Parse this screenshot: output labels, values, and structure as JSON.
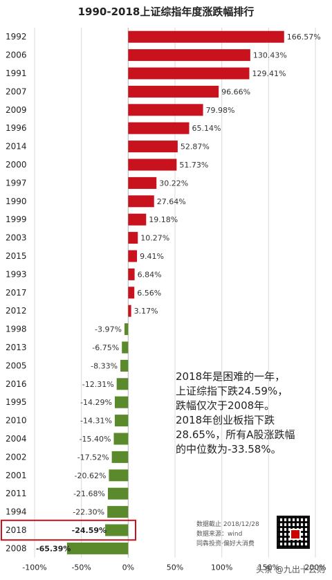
{
  "chart_data": {
    "type": "bar",
    "orientation": "horizontal",
    "title": "1990-2018上证综指年度涨跌幅排行",
    "categories": [
      "1992",
      "2006",
      "1991",
      "2007",
      "2009",
      "1996",
      "2014",
      "2000",
      "1997",
      "1990",
      "1999",
      "2003",
      "2015",
      "1993",
      "2017",
      "2012",
      "1998",
      "2013",
      "2005",
      "2016",
      "1995",
      "2010",
      "2004",
      "2002",
      "2001",
      "2011",
      "1994",
      "2018",
      "2008"
    ],
    "values": [
      166.57,
      130.43,
      129.41,
      96.66,
      79.98,
      65.14,
      52.87,
      51.73,
      30.22,
      27.64,
      19.18,
      10.27,
      9.41,
      6.84,
      6.56,
      3.17,
      -3.97,
      -6.75,
      -8.33,
      -12.31,
      -14.29,
      -14.31,
      -15.4,
      -17.52,
      -20.62,
      -21.68,
      -22.3,
      -24.59,
      -65.39
    ],
    "value_labels": [
      "166.57%",
      "130.43%",
      "129.41%",
      "96.66%",
      "79.98%",
      "65.14%",
      "52.87%",
      "51.73%",
      "30.22%",
      "27.64%",
      "19.18%",
      "10.27%",
      "9.41%",
      "6.84%",
      "6.56%",
      "3.17%",
      "-3.97%",
      "-6.75%",
      "-8.33%",
      "-12.31%",
      "-14.29%",
      "-14.31%",
      "-15.40%",
      "-17.52%",
      "-20.62%",
      "-21.68%",
      "-22.30%",
      "-24.59%",
      "-65.39%"
    ],
    "xlim": [
      -100,
      200
    ],
    "xticks": [
      -100,
      -50,
      0,
      50,
      100,
      150,
      200
    ],
    "xtick_labels": [
      "-100%",
      "-50%",
      "0%",
      "50%",
      "100%",
      "150%",
      "200%"
    ],
    "grid": true,
    "highlight_category": "2018",
    "colors": {
      "positive": "#c8121e",
      "negative": "#5b8a2c",
      "highlight_box": "#c8121e"
    }
  },
  "annotation": {
    "lines": [
      "2018年是困难的一年，",
      "上证综指下跌24.59%，",
      "跌幅仅次于2008年。",
      "2018年创业板指下跌",
      "28.65%，所有A股涨跌幅",
      "的中位数为-33.58%。"
    ]
  },
  "source": {
    "lines": [
      "数据截止 2018/12/28",
      "数据来源：wind",
      "同犇投资·偏好大消费"
    ]
  },
  "watermark": "头条 @九出十云则"
}
